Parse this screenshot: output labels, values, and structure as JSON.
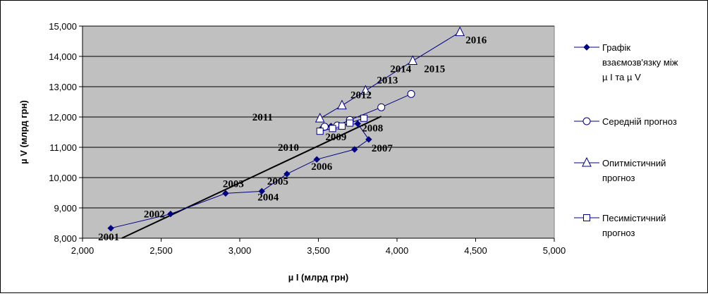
{
  "chart_data": {
    "type": "scatter",
    "xlabel": "µ I (млрд грн)",
    "ylabel": "µ V (млрд грн)",
    "xlim": [
      2000,
      5000
    ],
    "ylim": [
      8000,
      15000
    ],
    "x_ticks": [
      "2,000",
      "2,500",
      "3,000",
      "3,500",
      "4,000",
      "4,500",
      "5,000"
    ],
    "y_ticks": [
      "8,000",
      "9,000",
      "10,000",
      "11,000",
      "12,000",
      "13,000",
      "14,000",
      "15,000"
    ],
    "grid": "horizontal",
    "plot_background": "#c0c0c0",
    "legend_position": "right",
    "series": [
      {
        "name": "Графік взаємозв'язку між µ I та µ V",
        "marker": "diamond",
        "color": "#000080",
        "points": [
          {
            "x": 2180,
            "y": 8330,
            "label": "2001"
          },
          {
            "x": 2560,
            "y": 8800,
            "label": "2002"
          },
          {
            "x": 2910,
            "y": 9480,
            "label": "2003"
          },
          {
            "x": 3140,
            "y": 9550,
            "label": "2004"
          },
          {
            "x": 3300,
            "y": 10120,
            "label": "2005"
          },
          {
            "x": 3490,
            "y": 10600,
            "label": "2006"
          },
          {
            "x": 3730,
            "y": 10930,
            "label": "2007"
          },
          {
            "x": 3820,
            "y": 11260,
            "label": "2007b"
          },
          {
            "x": 3750,
            "y": 11780,
            "label": "2008"
          },
          {
            "x": 3580,
            "y": 11700,
            "label": "2009"
          },
          {
            "x": 3520,
            "y": 11620,
            "label": "2010"
          }
        ]
      },
      {
        "name": "Середній прогноз",
        "marker": "circle",
        "color": "#000080",
        "points": [
          {
            "x": 3540,
            "y": 11680
          },
          {
            "x": 3620,
            "y": 11720
          },
          {
            "x": 3700,
            "y": 11900
          },
          {
            "x": 3900,
            "y": 12320
          },
          {
            "x": 4090,
            "y": 12760
          }
        ]
      },
      {
        "name": "Опитмістичний прогноз",
        "marker": "triangle",
        "color": "#000080",
        "points": [
          {
            "x": 3510,
            "y": 11950
          },
          {
            "x": 3650,
            "y": 12380
          },
          {
            "x": 3800,
            "y": 12870
          },
          {
            "x": 4100,
            "y": 13850
          },
          {
            "x": 4400,
            "y": 14800
          }
        ]
      },
      {
        "name": "Песимістичний прогноз",
        "marker": "square",
        "color": "#000080",
        "points": [
          {
            "x": 3510,
            "y": 11530
          },
          {
            "x": 3590,
            "y": 11620
          },
          {
            "x": 3650,
            "y": 11700
          },
          {
            "x": 3700,
            "y": 11800
          },
          {
            "x": 3790,
            "y": 11960
          }
        ]
      }
    ],
    "trendline": {
      "color": "#000000",
      "points": [
        {
          "x": 2250,
          "y": 8000
        },
        {
          "x": 3900,
          "y": 12020
        }
      ]
    },
    "year_labels": [
      {
        "text": "2001",
        "x": 2180,
        "y": 8330
      },
      {
        "text": "2002",
        "x": 2560,
        "y": 8800
      },
      {
        "text": "2003",
        "x": 2910,
        "y": 9480
      },
      {
        "text": "2004",
        "x": 3140,
        "y": 9550
      },
      {
        "text": "2005",
        "x": 3300,
        "y": 10120
      },
      {
        "text": "2006",
        "x": 3490,
        "y": 10600
      },
      {
        "text": "2007",
        "x": 3820,
        "y": 11260
      },
      {
        "text": "2008",
        "x": 3750,
        "y": 11780
      },
      {
        "text": "2009",
        "x": 3580,
        "y": 11700
      },
      {
        "text": "2010",
        "x": 3520,
        "y": 11530
      },
      {
        "text": "2011",
        "x": 3510,
        "y": 11950
      },
      {
        "text": "2012",
        "x": 3650,
        "y": 12380
      },
      {
        "text": "2013",
        "x": 3800,
        "y": 12870
      },
      {
        "text": "2014",
        "x": 4100,
        "y": 13850
      },
      {
        "text": "2015",
        "x": 4100,
        "y": 13850
      },
      {
        "text": "2016",
        "x": 4400,
        "y": 14800
      }
    ],
    "legend": [
      {
        "lines": [
          "Графік",
          "взаємозв'язку між",
          "µ I та µ V"
        ],
        "marker": "diamond"
      },
      {
        "lines": [
          "Середній прогноз"
        ],
        "marker": "circle"
      },
      {
        "lines": [
          "Опитмістичний",
          "прогноз"
        ],
        "marker": "triangle"
      },
      {
        "lines": [
          "Песимістичний",
          "прогноз"
        ],
        "marker": "square"
      }
    ]
  }
}
